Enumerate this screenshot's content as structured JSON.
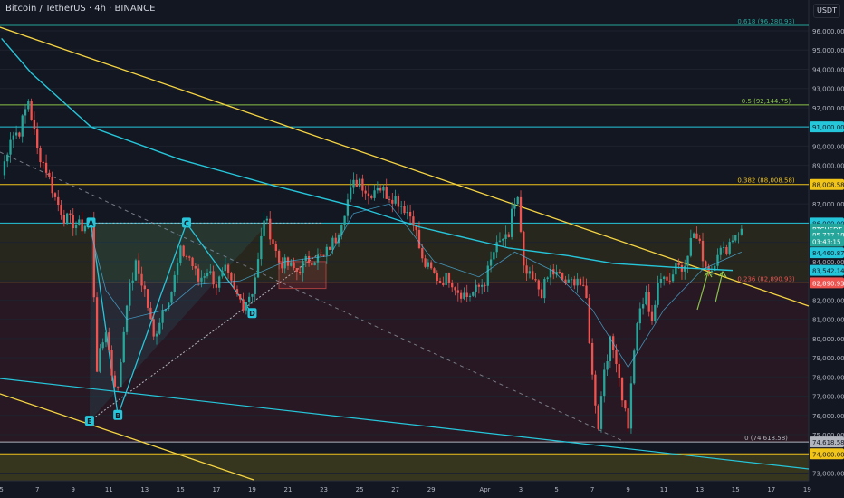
{
  "header": {
    "symbol_title": "Bitcoin / TetherUS · 4h · BINANCE",
    "currency": "USDT"
  },
  "colors": {
    "bg": "#131722",
    "up": "#26a69a",
    "down": "#ef5350",
    "ma": "#26c6da",
    "fib_yellow": "#f0c419",
    "fib_green": "#8bc34a",
    "fib_red": "#ef5350",
    "trend": "#f5d442"
  },
  "chart_data": {
    "type": "candlestick",
    "title": "Bitcoin / TetherUS · 4h · BINANCE",
    "ylim": [
      72600,
      97600
    ],
    "yticks": [
      73000,
      74000,
      75000,
      76000,
      77000,
      78000,
      79000,
      80000,
      81000,
      82000,
      83000,
      84000,
      85000,
      86000,
      87000,
      88000,
      89000,
      90000,
      91000,
      92000,
      93000,
      94000,
      95000,
      96000
    ],
    "ytick_labels": [
      "73,000.00",
      "74,000.00",
      "75,000.00",
      "76,000.00",
      "77,000.00",
      "78,000.00",
      "79,000.00",
      "80,000.00",
      "81,000.00",
      "82,000.00",
      "83,000.00",
      "84,000.00",
      "85,000.00",
      "86,000.00",
      "87,000.00",
      "88,000.00",
      "89,000.00",
      "90,000.00",
      "91,000.00",
      "92,000.00",
      "93,000.00",
      "94,000.00",
      "95,000.00",
      "96,000.00"
    ],
    "xticks": [
      {
        "label": "5",
        "bar": 0
      },
      {
        "label": "7",
        "bar": 12
      },
      {
        "label": "9",
        "bar": 24
      },
      {
        "label": "11",
        "bar": 36
      },
      {
        "label": "13",
        "bar": 48
      },
      {
        "label": "15",
        "bar": 60
      },
      {
        "label": "17",
        "bar": 72
      },
      {
        "label": "19",
        "bar": 84
      },
      {
        "label": "21",
        "bar": 96
      },
      {
        "label": "23",
        "bar": 108
      },
      {
        "label": "25",
        "bar": 120
      },
      {
        "label": "27",
        "bar": 132
      },
      {
        "label": "29",
        "bar": 144
      },
      {
        "label": "Apr",
        "bar": 162
      },
      {
        "label": "3",
        "bar": 174
      },
      {
        "label": "5",
        "bar": 186
      },
      {
        "label": "7",
        "bar": 198
      },
      {
        "label": "9",
        "bar": 210
      },
      {
        "label": "11",
        "bar": 222
      },
      {
        "label": "13",
        "bar": 234
      },
      {
        "label": "15",
        "bar": 246
      },
      {
        "label": "17",
        "bar": 258
      },
      {
        "label": "19",
        "bar": 270
      }
    ],
    "total_bars": 271,
    "last_bar": 248,
    "anchors": [
      {
        "bar": 0,
        "price": 88500
      },
      {
        "bar": 3,
        "price": 90500
      },
      {
        "bar": 6,
        "price": 90800
      },
      {
        "bar": 9,
        "price": 92400
      },
      {
        "bar": 12,
        "price": 89800
      },
      {
        "bar": 15,
        "price": 88800
      },
      {
        "bar": 18,
        "price": 87300
      },
      {
        "bar": 21,
        "price": 86300
      },
      {
        "bar": 24,
        "price": 86000
      },
      {
        "bar": 27,
        "price": 85800
      },
      {
        "bar": 30,
        "price": 86100
      },
      {
        "bar": 32,
        "price": 78500
      },
      {
        "bar": 35,
        "price": 80500
      },
      {
        "bar": 37,
        "price": 78200
      },
      {
        "bar": 39,
        "price": 77300
      },
      {
        "bar": 42,
        "price": 82000
      },
      {
        "bar": 45,
        "price": 83800
      },
      {
        "bar": 48,
        "price": 82500
      },
      {
        "bar": 51,
        "price": 80000
      },
      {
        "bar": 54,
        "price": 81500
      },
      {
        "bar": 57,
        "price": 82500
      },
      {
        "bar": 60,
        "price": 84500
      },
      {
        "bar": 63,
        "price": 84200
      },
      {
        "bar": 66,
        "price": 83000
      },
      {
        "bar": 69,
        "price": 83600
      },
      {
        "bar": 72,
        "price": 82800
      },
      {
        "bar": 75,
        "price": 83500
      },
      {
        "bar": 78,
        "price": 82400
      },
      {
        "bar": 81,
        "price": 81800
      },
      {
        "bar": 84,
        "price": 82500
      },
      {
        "bar": 86,
        "price": 84000
      },
      {
        "bar": 88,
        "price": 86300
      },
      {
        "bar": 90,
        "price": 85500
      },
      {
        "bar": 93,
        "price": 84000
      },
      {
        "bar": 96,
        "price": 83800
      },
      {
        "bar": 99,
        "price": 83500
      },
      {
        "bar": 102,
        "price": 84000
      },
      {
        "bar": 105,
        "price": 84200
      },
      {
        "bar": 108,
        "price": 84200
      },
      {
        "bar": 110,
        "price": 84800
      },
      {
        "bar": 112,
        "price": 85200
      },
      {
        "bar": 114,
        "price": 86200
      },
      {
        "bar": 116,
        "price": 87200
      },
      {
        "bar": 118,
        "price": 88000
      },
      {
        "bar": 120,
        "price": 88300
      },
      {
        "bar": 123,
        "price": 87400
      },
      {
        "bar": 126,
        "price": 88000
      },
      {
        "bar": 129,
        "price": 87500
      },
      {
        "bar": 132,
        "price": 87300
      },
      {
        "bar": 135,
        "price": 86800
      },
      {
        "bar": 138,
        "price": 86200
      },
      {
        "bar": 141,
        "price": 84000
      },
      {
        "bar": 144,
        "price": 83500
      },
      {
        "bar": 147,
        "price": 83000
      },
      {
        "bar": 150,
        "price": 83200
      },
      {
        "bar": 153,
        "price": 82500
      },
      {
        "bar": 156,
        "price": 82200
      },
      {
        "bar": 159,
        "price": 82500
      },
      {
        "bar": 162,
        "price": 83000
      },
      {
        "bar": 165,
        "price": 84500
      },
      {
        "bar": 168,
        "price": 85200
      },
      {
        "bar": 170,
        "price": 85000
      },
      {
        "bar": 171,
        "price": 86800
      },
      {
        "bar": 173,
        "price": 87200
      },
      {
        "bar": 175,
        "price": 83500
      },
      {
        "bar": 178,
        "price": 83000
      },
      {
        "bar": 181,
        "price": 82400
      },
      {
        "bar": 184,
        "price": 83500
      },
      {
        "bar": 187,
        "price": 83200
      },
      {
        "bar": 190,
        "price": 82800
      },
      {
        "bar": 193,
        "price": 83200
      },
      {
        "bar": 196,
        "price": 82000
      },
      {
        "bar": 198,
        "price": 78000
      },
      {
        "bar": 200,
        "price": 75500
      },
      {
        "bar": 202,
        "price": 78500
      },
      {
        "bar": 204,
        "price": 79800
      },
      {
        "bar": 206,
        "price": 79000
      },
      {
        "bar": 208,
        "price": 77000
      },
      {
        "bar": 210,
        "price": 75500
      },
      {
        "bar": 212,
        "price": 79500
      },
      {
        "bar": 214,
        "price": 81500
      },
      {
        "bar": 216,
        "price": 82200
      },
      {
        "bar": 218,
        "price": 81000
      },
      {
        "bar": 220,
        "price": 82600
      },
      {
        "bar": 222,
        "price": 83500
      },
      {
        "bar": 224,
        "price": 83000
      },
      {
        "bar": 226,
        "price": 84000
      },
      {
        "bar": 228,
        "price": 83600
      },
      {
        "bar": 230,
        "price": 84600
      },
      {
        "bar": 232,
        "price": 85500
      },
      {
        "bar": 234,
        "price": 84800
      },
      {
        "bar": 236,
        "price": 83800
      },
      {
        "bar": 238,
        "price": 83600
      },
      {
        "bar": 240,
        "price": 84600
      },
      {
        "bar": 242,
        "price": 84500
      },
      {
        "bar": 244,
        "price": 85000
      },
      {
        "bar": 246,
        "price": 85500
      },
      {
        "bar": 248,
        "price": 85700
      }
    ],
    "ma_slow": [
      {
        "bar": 0,
        "price": 95600
      },
      {
        "bar": 10,
        "price": 93800
      },
      {
        "bar": 30,
        "price": 91000
      },
      {
        "bar": 60,
        "price": 89300
      },
      {
        "bar": 90,
        "price": 88000
      },
      {
        "bar": 105,
        "price": 87400
      },
      {
        "bar": 120,
        "price": 86800
      },
      {
        "bar": 140,
        "price": 85800
      },
      {
        "bar": 170,
        "price": 84700
      },
      {
        "bar": 190,
        "price": 84300
      },
      {
        "bar": 205,
        "price": 83900
      },
      {
        "bar": 225,
        "price": 83700
      },
      {
        "bar": 245,
        "price": 83540
      }
    ],
    "ma_fast": [
      {
        "bar": 30,
        "price": 85500
      },
      {
        "bar": 35,
        "price": 82500
      },
      {
        "bar": 42,
        "price": 81000
      },
      {
        "bar": 55,
        "price": 81500
      },
      {
        "bar": 65,
        "price": 82800
      },
      {
        "bar": 80,
        "price": 83000
      },
      {
        "bar": 95,
        "price": 84000
      },
      {
        "bar": 110,
        "price": 84300
      },
      {
        "bar": 118,
        "price": 86500
      },
      {
        "bar": 130,
        "price": 87000
      },
      {
        "bar": 145,
        "price": 84000
      },
      {
        "bar": 160,
        "price": 83200
      },
      {
        "bar": 172,
        "price": 84500
      },
      {
        "bar": 185,
        "price": 83500
      },
      {
        "bar": 198,
        "price": 81500
      },
      {
        "bar": 210,
        "price": 78500
      },
      {
        "bar": 222,
        "price": 81500
      },
      {
        "bar": 235,
        "price": 83600
      },
      {
        "bar": 248,
        "price": 84500
      }
    ],
    "fib_levels": [
      {
        "label": "0.618 (96,280.93)",
        "price": 96280.93,
        "color": "#26a69a"
      },
      {
        "label": "0.5 (92,144.75)",
        "price": 92144.75,
        "color": "#8bc34a"
      },
      {
        "label": "0.382 (88,008.58)",
        "price": 88008.58,
        "color": "#f0c419"
      },
      {
        "label": "0.236 (82,890.93)",
        "price": 82890.93,
        "color": "#ef5350"
      },
      {
        "label": "0 (74,618.58)",
        "price": 74618.58,
        "color": "#b2b5be"
      }
    ],
    "hlines": [
      {
        "price": 91000,
        "color": "#26c6da"
      },
      {
        "price": 86000,
        "color": "#26c6da"
      },
      {
        "price": 74000,
        "color": "#f0c419"
      }
    ],
    "pattern_points": [
      {
        "label": "A",
        "bar": 30,
        "price": 86000
      },
      {
        "label": "B",
        "bar": 39,
        "price": 76000
      },
      {
        "label": "C",
        "bar": 62,
        "price": 86000
      },
      {
        "label": "D",
        "bar": 84,
        "price": 81300
      },
      {
        "label": "E",
        "bar": 38,
        "price": 75700
      }
    ],
    "price_tags": [
      {
        "text": "91,000.00",
        "price": 91000,
        "bg": "#26c6da",
        "fg": "#131722"
      },
      {
        "text": "88,008.58",
        "price": 88008.58,
        "bg": "#f0c419",
        "fg": "#131722"
      },
      {
        "text": "86,000.00",
        "price": 86000,
        "bg": "#26c6da",
        "fg": "#131722"
      },
      {
        "text": "BTCUSDT",
        "price": 85700,
        "bg": "#26a69a",
        "fg": "#ffffff"
      },
      {
        "text": "85,717.18",
        "price": 85400,
        "bg": "#26a69a",
        "fg": "#ffffff"
      },
      {
        "text": "03:43:15",
        "price": 85050,
        "bg": "#26a69a",
        "fg": "#ffffff"
      },
      {
        "text": "84,460.87",
        "price": 84460.87,
        "bg": "#26c6da",
        "fg": "#131722"
      },
      {
        "text": "83,542.14",
        "price": 83542.14,
        "bg": "#26c6da",
        "fg": "#131722"
      },
      {
        "text": "82,890.93",
        "price": 82890.93,
        "bg": "#ef5350",
        "fg": "#ffffff"
      },
      {
        "text": "74,618.58",
        "price": 74618.58,
        "bg": "#b2b5be",
        "fg": "#131722"
      },
      {
        "text": "74,000.00",
        "price": 74000,
        "bg": "#f0c419",
        "fg": "#131722"
      }
    ]
  }
}
